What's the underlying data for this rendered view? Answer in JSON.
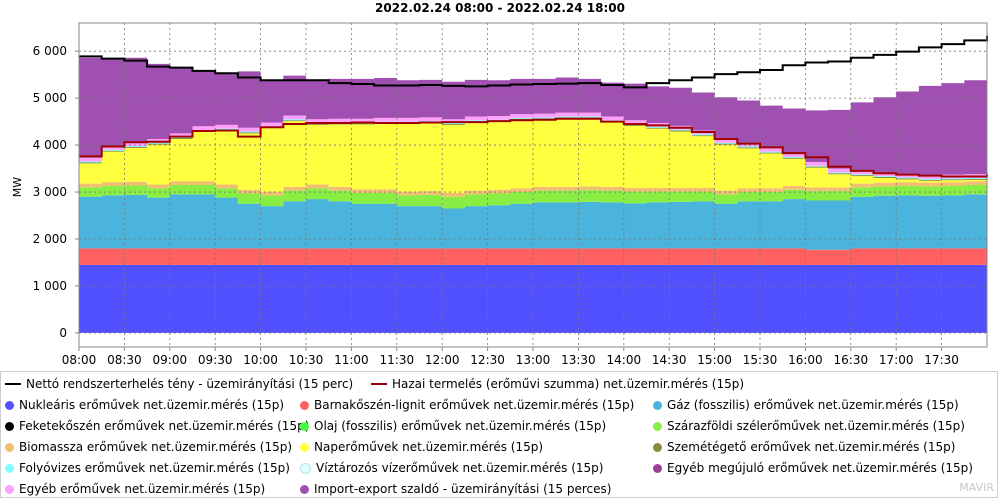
{
  "chart_data": {
    "type": "area",
    "title": "2022.02.24 08:00 - 2022.02.24 18:00",
    "ylabel": "MW",
    "xlabel": "",
    "ylim": [
      -300,
      6600
    ],
    "xlim": [
      "08:00",
      "18:00"
    ],
    "grid": true,
    "legend_position": "bottom",
    "y_ticks": [
      0,
      1000,
      2000,
      3000,
      4000,
      5000,
      6000
    ],
    "y_tick_labels": [
      "0",
      "1 000",
      "2 000",
      "3 000",
      "4 000",
      "5 000",
      "6 000"
    ],
    "x_tick_labels": [
      "08:00",
      "08:30",
      "09:00",
      "09:30",
      "10:00",
      "10:30",
      "11:00",
      "11:30",
      "12:00",
      "12:30",
      "13:00",
      "13:30",
      "14:00",
      "14:30",
      "15:00",
      "15:30",
      "16:00",
      "16:30",
      "17:00",
      "17:30"
    ],
    "x": [
      "08:00",
      "08:15",
      "08:30",
      "08:45",
      "09:00",
      "09:15",
      "09:30",
      "09:45",
      "10:00",
      "10:15",
      "10:30",
      "10:45",
      "11:00",
      "11:15",
      "11:30",
      "11:45",
      "12:00",
      "12:15",
      "12:30",
      "12:45",
      "13:00",
      "13:15",
      "13:30",
      "13:45",
      "14:00",
      "14:15",
      "14:30",
      "14:45",
      "15:00",
      "15:15",
      "15:30",
      "15:45",
      "16:00",
      "16:15",
      "16:30",
      "16:45",
      "17:00",
      "17:15",
      "17:30",
      "17:45",
      "18:00"
    ],
    "series": [
      {
        "name": "Nukleáris erőművek net.üzemir.mérés (15p)",
        "color": "#5050ff",
        "values": [
          1450,
          1450,
          1450,
          1450,
          1450,
          1450,
          1450,
          1450,
          1450,
          1450,
          1450,
          1450,
          1450,
          1450,
          1450,
          1450,
          1450,
          1450,
          1450,
          1450,
          1450,
          1450,
          1450,
          1450,
          1450,
          1450,
          1450,
          1450,
          1450,
          1450,
          1450,
          1450,
          1450,
          1450,
          1450,
          1450,
          1450,
          1450,
          1450,
          1450,
          1450
        ]
      },
      {
        "name": "Barnakőszén-lignit erőművek net.üzemir.mérés (15p)",
        "color": "#ff6060",
        "values": [
          350,
          350,
          350,
          350,
          350,
          350,
          350,
          350,
          350,
          350,
          350,
          350,
          350,
          350,
          350,
          350,
          350,
          350,
          350,
          350,
          350,
          350,
          350,
          350,
          350,
          350,
          350,
          350,
          350,
          350,
          350,
          350,
          320,
          320,
          350,
          350,
          350,
          350,
          350,
          350,
          350
        ]
      },
      {
        "name": "Gáz (fosszilis) erőművek net.üzemir.mérés (15p)",
        "color": "#4ab4dc",
        "values": [
          1100,
          1130,
          1140,
          1080,
          1150,
          1150,
          1080,
          950,
          900,
          1000,
          1050,
          1000,
          950,
          950,
          900,
          900,
          850,
          900,
          920,
          950,
          980,
          980,
          990,
          980,
          960,
          980,
          990,
          1000,
          950,
          1000,
          1000,
          1050,
          1050,
          1050,
          1100,
          1120,
          1130,
          1120,
          1130,
          1150,
          1180
        ]
      },
      {
        "name": "Feketekőszén erőművek net.üzemir.mérés (15p)",
        "color": "#000000",
        "values": [
          0,
          0,
          0,
          0,
          0,
          0,
          0,
          0,
          0,
          0,
          0,
          0,
          0,
          0,
          0,
          0,
          0,
          0,
          0,
          0,
          0,
          0,
          0,
          0,
          0,
          0,
          0,
          0,
          0,
          0,
          0,
          0,
          0,
          0,
          0,
          0,
          0,
          0,
          0,
          0,
          0
        ]
      },
      {
        "name": "Olaj (fosszilis) erőművek net.üzemir.mérés (15p)",
        "color": "#40ff40",
        "values": [
          0,
          0,
          0,
          0,
          0,
          0,
          0,
          0,
          0,
          0,
          0,
          0,
          0,
          0,
          0,
          0,
          0,
          0,
          0,
          0,
          0,
          0,
          0,
          0,
          0,
          0,
          0,
          0,
          0,
          0,
          0,
          0,
          0,
          0,
          0,
          0,
          0,
          0,
          0,
          0,
          0
        ]
      },
      {
        "name": "Szárazföldi szélerőművek net.üzemir.mérés (15p)",
        "color": "#88ee44",
        "values": [
          200,
          200,
          200,
          200,
          200,
          200,
          200,
          220,
          230,
          230,
          230,
          230,
          230,
          230,
          230,
          240,
          250,
          250,
          250,
          250,
          250,
          250,
          250,
          250,
          250,
          230,
          220,
          210,
          200,
          200,
          200,
          200,
          200,
          200,
          200,
          200,
          200,
          200,
          200,
          200,
          200
        ]
      },
      {
        "name": "Biomassza erőművek net.üzemir.mérés (15p)",
        "color": "#f0c070",
        "values": [
          80,
          80,
          80,
          80,
          80,
          80,
          80,
          80,
          80,
          80,
          80,
          80,
          80,
          80,
          80,
          80,
          80,
          80,
          80,
          80,
          80,
          80,
          80,
          80,
          80,
          80,
          80,
          80,
          80,
          80,
          80,
          80,
          80,
          80,
          80,
          80,
          80,
          80,
          80,
          80,
          80
        ]
      },
      {
        "name": "Naperőművek net.üzemir.mérés (15p)",
        "color": "#ffff40",
        "values": [
          430,
          650,
          720,
          850,
          900,
          1050,
          1150,
          1200,
          1350,
          1400,
          1270,
          1330,
          1380,
          1400,
          1450,
          1450,
          1450,
          1460,
          1450,
          1460,
          1440,
          1460,
          1450,
          1380,
          1320,
          1260,
          1200,
          1100,
          980,
          850,
          740,
          580,
          420,
          280,
          160,
          100,
          60,
          40,
          40,
          30,
          20
        ]
      },
      {
        "name": "Szemétégető erőművek net.üzemir.mérés (15p)",
        "color": "#8b8b3c",
        "values": [
          20,
          20,
          20,
          20,
          20,
          20,
          20,
          20,
          20,
          20,
          20,
          20,
          20,
          20,
          20,
          20,
          20,
          20,
          20,
          20,
          20,
          20,
          20,
          20,
          20,
          20,
          20,
          20,
          20,
          20,
          20,
          20,
          20,
          20,
          20,
          20,
          20,
          20,
          20,
          20,
          20
        ]
      },
      {
        "name": "Folyóvizes erőművek net.üzemir.mérés (15p)",
        "color": "#80ffff",
        "values": [
          20,
          20,
          20,
          20,
          20,
          20,
          20,
          20,
          20,
          20,
          20,
          20,
          20,
          20,
          20,
          20,
          20,
          20,
          20,
          20,
          20,
          20,
          20,
          20,
          20,
          20,
          20,
          20,
          20,
          20,
          20,
          20,
          20,
          20,
          20,
          20,
          20,
          20,
          20,
          20,
          20
        ]
      },
      {
        "name": "Víztározós vízerőművek net.üzemir.mérés (15p)",
        "color": "#e0ffff",
        "values": [
          0,
          0,
          0,
          0,
          0,
          0,
          0,
          0,
          0,
          0,
          0,
          0,
          0,
          0,
          0,
          0,
          0,
          0,
          0,
          0,
          0,
          0,
          0,
          0,
          0,
          0,
          0,
          0,
          0,
          0,
          0,
          0,
          0,
          0,
          0,
          0,
          0,
          0,
          0,
          0,
          0
        ]
      },
      {
        "name": "Egyéb megújuló erőművek net.üzemir.mérés (15p)",
        "color": "#9a3f9a",
        "values": [
          0,
          0,
          0,
          0,
          0,
          0,
          0,
          0,
          0,
          0,
          0,
          0,
          0,
          0,
          0,
          0,
          0,
          0,
          0,
          0,
          0,
          0,
          0,
          0,
          0,
          0,
          0,
          0,
          0,
          0,
          0,
          0,
          0,
          0,
          0,
          0,
          0,
          0,
          0,
          0,
          0
        ]
      },
      {
        "name": "Egyéb erőművek net.üzemir.mérés (15p)",
        "color": "#ffa0ff",
        "values": [
          80,
          80,
          80,
          80,
          80,
          80,
          80,
          80,
          80,
          80,
          80,
          80,
          80,
          80,
          80,
          80,
          80,
          80,
          80,
          80,
          80,
          80,
          80,
          80,
          80,
          80,
          80,
          80,
          80,
          80,
          80,
          80,
          80,
          80,
          80,
          80,
          80,
          80,
          80,
          80,
          80
        ]
      },
      {
        "name": "Import-export szaldó - üzemirányítási (15 perces)",
        "color": "#a050b0",
        "values": [
          2130,
          1870,
          1800,
          1600,
          1400,
          1200,
          1110,
          1200,
          900,
          850,
          850,
          850,
          850,
          850,
          800,
          800,
          800,
          780,
          760,
          750,
          740,
          750,
          720,
          720,
          780,
          780,
          810,
          810,
          890,
          900,
          900,
          950,
          1100,
          1250,
          1450,
          1600,
          1750,
          1900,
          1950,
          2000,
          2000
        ]
      }
    ],
    "lines": [
      {
        "name": "Nettó rendszerterhelés tény - üzemirányítási (15 perc)",
        "color": "#000000",
        "values": [
          5890,
          5840,
          5800,
          5670,
          5650,
          5580,
          5530,
          5440,
          5380,
          5380,
          5380,
          5320,
          5300,
          5270,
          5270,
          5280,
          5260,
          5250,
          5270,
          5290,
          5300,
          5310,
          5320,
          5280,
          5230,
          5320,
          5380,
          5440,
          5510,
          5550,
          5600,
          5700,
          5760,
          5780,
          5860,
          5920,
          5990,
          6080,
          6150,
          6230,
          6330
        ]
      },
      {
        "name": "Hazai termelés (erőművi szumma) net.üzemir.mérés (15p)",
        "color": "#a00000",
        "values": [
          3760,
          3970,
          4060,
          4070,
          4180,
          4300,
          4310,
          4180,
          4380,
          4450,
          4470,
          4470,
          4480,
          4470,
          4470,
          4480,
          4490,
          4490,
          4510,
          4530,
          4540,
          4560,
          4560,
          4500,
          4450,
          4420,
          4370,
          4280,
          4130,
          4030,
          3950,
          3830,
          3740,
          3540,
          3450,
          3400,
          3370,
          3350,
          3330,
          3330,
          3380
        ]
      }
    ]
  },
  "legend": {
    "items": [
      {
        "label": "Nettó rendszerterhelés tény - üzemirányítási (15 perc)",
        "color": "#000000",
        "kind": "line"
      },
      {
        "label": "Hazai termelés (erőművi szumma) net.üzemir.mérés (15p)",
        "color": "#a00000",
        "kind": "line"
      },
      {
        "label": "Nukleáris erőművek net.üzemir.mérés (15p)",
        "color": "#5050ff",
        "kind": "dot"
      },
      {
        "label": "Barnakőszén-lignit erőművek net.üzemir.mérés (15p)",
        "color": "#ff6060",
        "kind": "dot"
      },
      {
        "label": "Gáz (fosszilis) erőművek net.üzemir.mérés (15p)",
        "color": "#4ab4dc",
        "kind": "dot"
      },
      {
        "label": "Feketekőszén erőművek net.üzemir.mérés (15p)",
        "color": "#000000",
        "kind": "dot"
      },
      {
        "label": "Olaj (fosszilis) erőművek net.üzemir.mérés (15p)",
        "color": "#40ff40",
        "kind": "dot"
      },
      {
        "label": "Szárazföldi szélerőművek net.üzemir.mérés (15p)",
        "color": "#88ee44",
        "kind": "dot"
      },
      {
        "label": "Biomassza erőművek net.üzemir.mérés (15p)",
        "color": "#f0c070",
        "kind": "dot"
      },
      {
        "label": "Naperőművek net.üzemir.mérés (15p)",
        "color": "#ffff40",
        "kind": "dot"
      },
      {
        "label": "Szemétégető erőművek net.üzemir.mérés (15p)",
        "color": "#8b8b3c",
        "kind": "dot"
      },
      {
        "label": "Folyóvizes erőművek net.üzemir.mérés (15p)",
        "color": "#80ffff",
        "kind": "dot"
      },
      {
        "label": "Víztározós vízerőművek net.üzemir.mérés (15p)",
        "color": "#e0ffff",
        "kind": "dot"
      },
      {
        "label": "Egyéb megújuló erőművek net.üzemir.mérés (15p)",
        "color": "#9a3f9a",
        "kind": "dot"
      },
      {
        "label": "Egyéb erőművek net.üzemir.mérés (15p)",
        "color": "#ffa0ff",
        "kind": "dot"
      },
      {
        "label": "Import-export szaldó - üzemirányítási (15 perces)",
        "color": "#a050b0",
        "kind": "dot"
      }
    ]
  },
  "watermark": "MAVIR"
}
